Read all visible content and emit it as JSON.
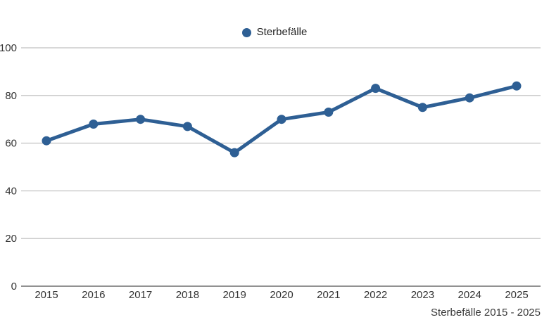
{
  "legend": {
    "label": "Sterbefälle"
  },
  "caption": "Sterbefälle 2015 - 2025",
  "colors": {
    "series": "#2E5F94",
    "grid": "#cccccc",
    "axis": "#919191",
    "tick_text": "#333333",
    "background": "#ffffff"
  },
  "chart_data": {
    "type": "line",
    "title": "",
    "xlabel": "",
    "ylabel": "",
    "categories": [
      "2015",
      "2016",
      "2017",
      "2018",
      "2019",
      "2020",
      "2021",
      "2022",
      "2023",
      "2024",
      "2025"
    ],
    "series": [
      {
        "name": "Sterbefälle",
        "color": "#2E5F94",
        "values": [
          61,
          68,
          70,
          67,
          56,
          70,
          73,
          83,
          75,
          79,
          84
        ]
      }
    ],
    "ylim": [
      0,
      100
    ],
    "yticks": [
      0,
      20,
      40,
      60,
      80,
      100
    ],
    "grid": true,
    "legend_position": "top-center",
    "marker": "circle"
  }
}
